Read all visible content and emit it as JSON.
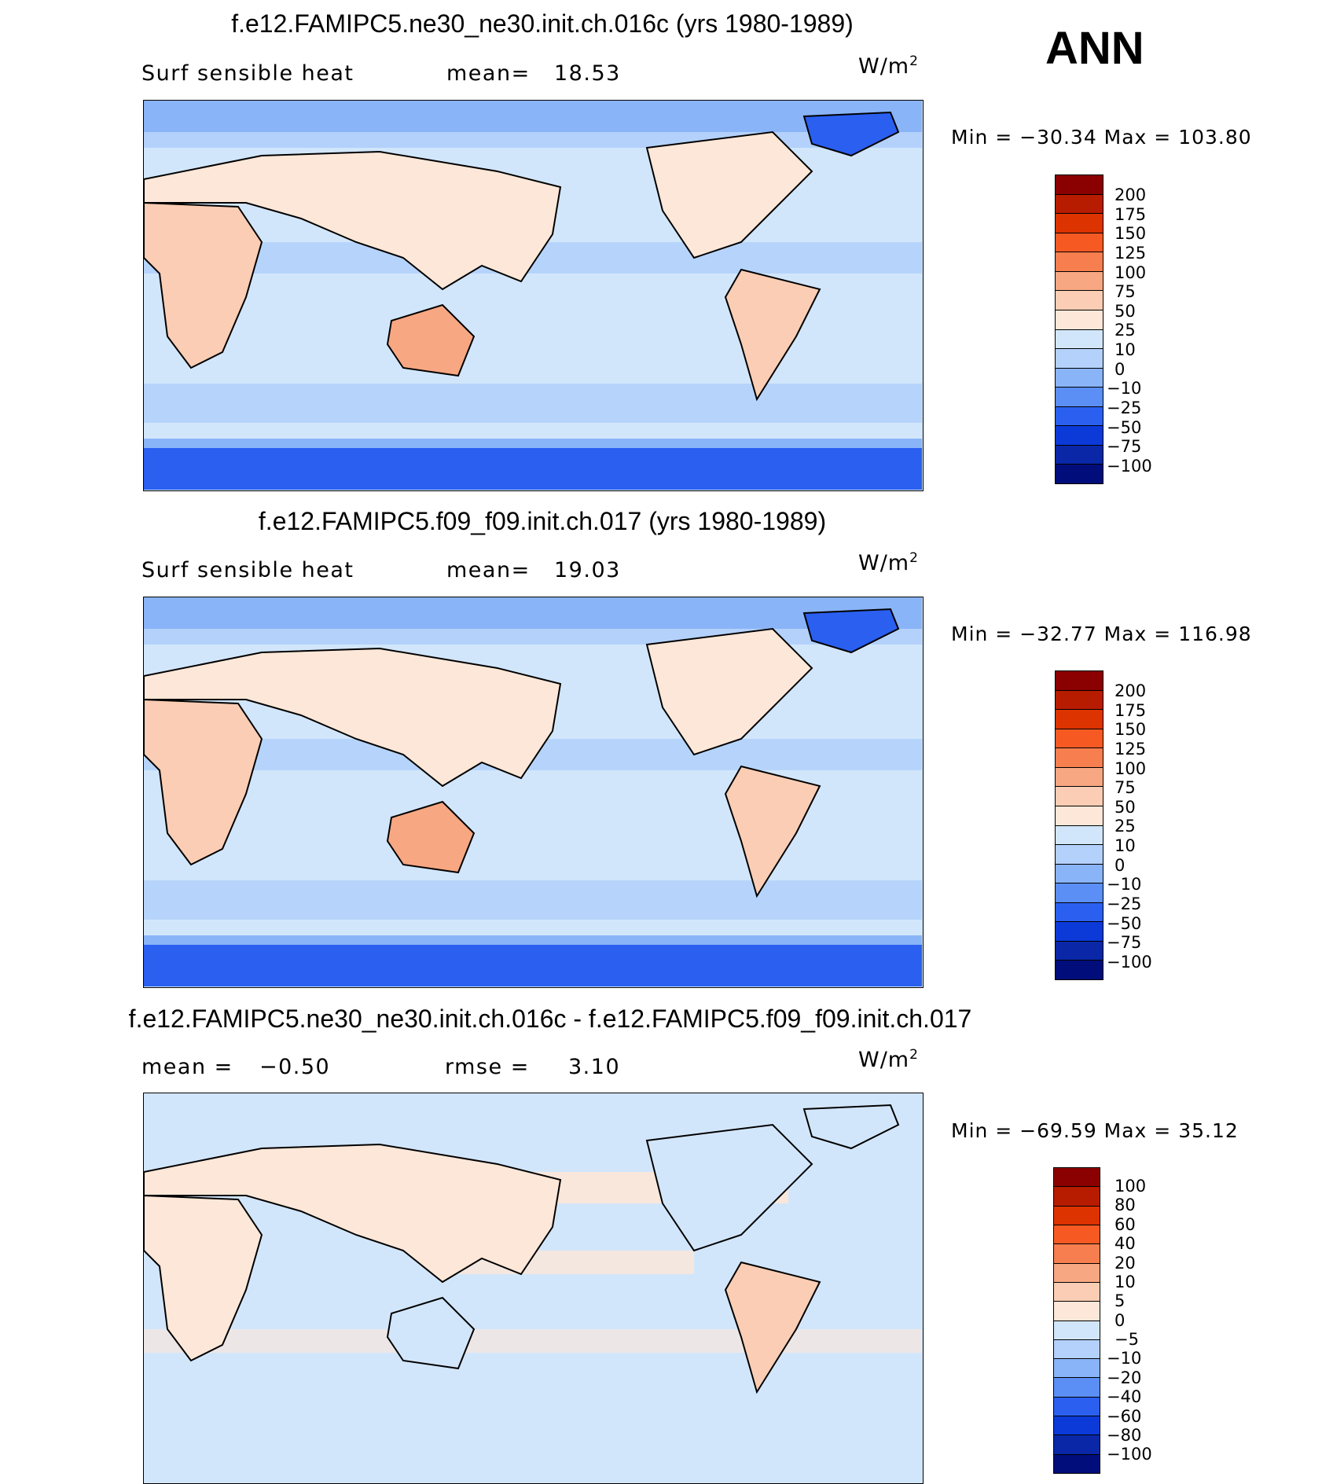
{
  "season": "ANN",
  "panels": [
    {
      "title": "f.e12.FAMIPC5.ne30_ne30.init.ch.016c (yrs 1980-1989)",
      "left_text": "Surf sensible heat",
      "stat_text": "mean=",
      "stat_value": "18.53",
      "units_base": "W/m",
      "units_exp": "2",
      "minmax": "Min = −30.34 Max = 103.80",
      "colorbar": {
        "levels": [
          "200",
          "175",
          "150",
          "125",
          "100",
          "75",
          "50",
          "25",
          "10",
          "0",
          "−10",
          "−25",
          "−50",
          "−75",
          "−100"
        ],
        "colors": [
          "#8b0000",
          "#b81c00",
          "#dd3300",
          "#f65a22",
          "#f77e4e",
          "#f8a783",
          "#fbcdb4",
          "#fde7d8",
          "#d2e6fb",
          "#b3d1fb",
          "#8ab4f8",
          "#5b8ff5",
          "#2a5ff0",
          "#0b3ad9",
          "#0a27a8",
          "#000d7a"
        ]
      }
    },
    {
      "title": "f.e12.FAMIPC5.f09_f09.init.ch.017 (yrs 1980-1989)",
      "left_text": "Surf sensible heat",
      "stat_text": "mean=",
      "stat_value": "19.03",
      "units_base": "W/m",
      "units_exp": "2",
      "minmax": "Min = −32.77 Max = 116.98",
      "colorbar": {
        "levels": [
          "200",
          "175",
          "150",
          "125",
          "100",
          "75",
          "50",
          "25",
          "10",
          "0",
          "−10",
          "−25",
          "−50",
          "−75",
          "−100"
        ],
        "colors": [
          "#8b0000",
          "#b81c00",
          "#dd3300",
          "#f65a22",
          "#f77e4e",
          "#f8a783",
          "#fbcdb4",
          "#fde7d8",
          "#d2e6fb",
          "#b3d1fb",
          "#8ab4f8",
          "#5b8ff5",
          "#2a5ff0",
          "#0b3ad9",
          "#0a27a8",
          "#000d7a"
        ]
      }
    },
    {
      "title": "f.e12.FAMIPC5.ne30_ne30.init.ch.016c - f.e12.FAMIPC5.f09_f09.init.ch.017",
      "left_text": "mean =",
      "left_value": "−0.50",
      "stat_text": "rmse =",
      "stat_value": "3.10",
      "units_base": "W/m",
      "units_exp": "2",
      "minmax": "Min = −69.59 Max =  35.12",
      "colorbar": {
        "levels": [
          "100",
          "80",
          "60",
          "40",
          "20",
          "10",
          "5",
          "0",
          "−5",
          "−10",
          "−20",
          "−40",
          "−60",
          "−80",
          "−100"
        ],
        "colors": [
          "#8b0000",
          "#b81c00",
          "#dd3300",
          "#f65a22",
          "#f77e4e",
          "#f8a783",
          "#fbcdb4",
          "#fde7d8",
          "#d2e6fb",
          "#b3d1fb",
          "#8ab4f8",
          "#5b8ff5",
          "#2a5ff0",
          "#0b3ad9",
          "#0a27a8",
          "#000d7a"
        ]
      }
    }
  ]
}
